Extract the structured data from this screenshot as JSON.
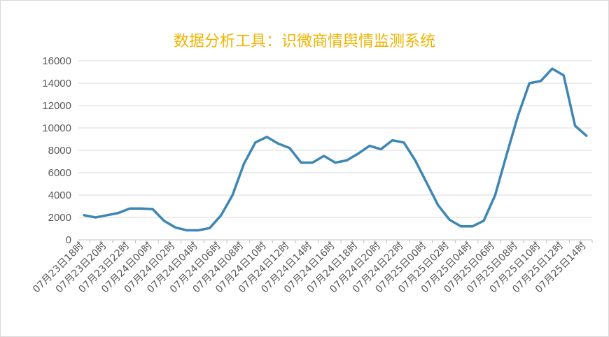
{
  "chart_data": {
    "type": "line",
    "title": "数据分析工具：识微商情舆情监测系统",
    "xlabel": "",
    "ylabel": "",
    "ylim": [
      0,
      16000
    ],
    "yticks": [
      0,
      2000,
      4000,
      6000,
      8000,
      10000,
      12000,
      14000,
      16000
    ],
    "grid": "horizontal",
    "legend": "none",
    "line_color": "#3e86b5",
    "title_color": "#f0b400",
    "x_labels": [
      "07月23日18时",
      "07月23日20时",
      "07月23日22时",
      "07月24日00时",
      "07月24日02时",
      "07月24日04时",
      "07月24日06时",
      "07月24日08时",
      "07月24日10时",
      "07月24日12时",
      "07月24日14时",
      "07月24日16时",
      "07月24日18时",
      "07月24日20时",
      "07月24日22时",
      "07月25日00时",
      "07月25日02时",
      "07月25日04时",
      "07月25日06时",
      "07月25日08时",
      "07月25日10时",
      "07月25日12时",
      "07月25日14时"
    ],
    "series": [
      {
        "values": [
          2200,
          2000,
          2200,
          2400,
          2800,
          2800,
          2750,
          1700,
          1100,
          850,
          850,
          1050,
          2200,
          4000,
          6800,
          8700,
          9200,
          8600,
          8200,
          6900,
          6900,
          7500,
          6900,
          7100,
          7700,
          8400,
          8100,
          8900,
          8700,
          7100,
          5100,
          3100,
          1800,
          1200,
          1200,
          1700,
          4000,
          7600,
          11100,
          14000,
          14200,
          15300,
          14700,
          10200,
          9300
        ]
      }
    ]
  }
}
